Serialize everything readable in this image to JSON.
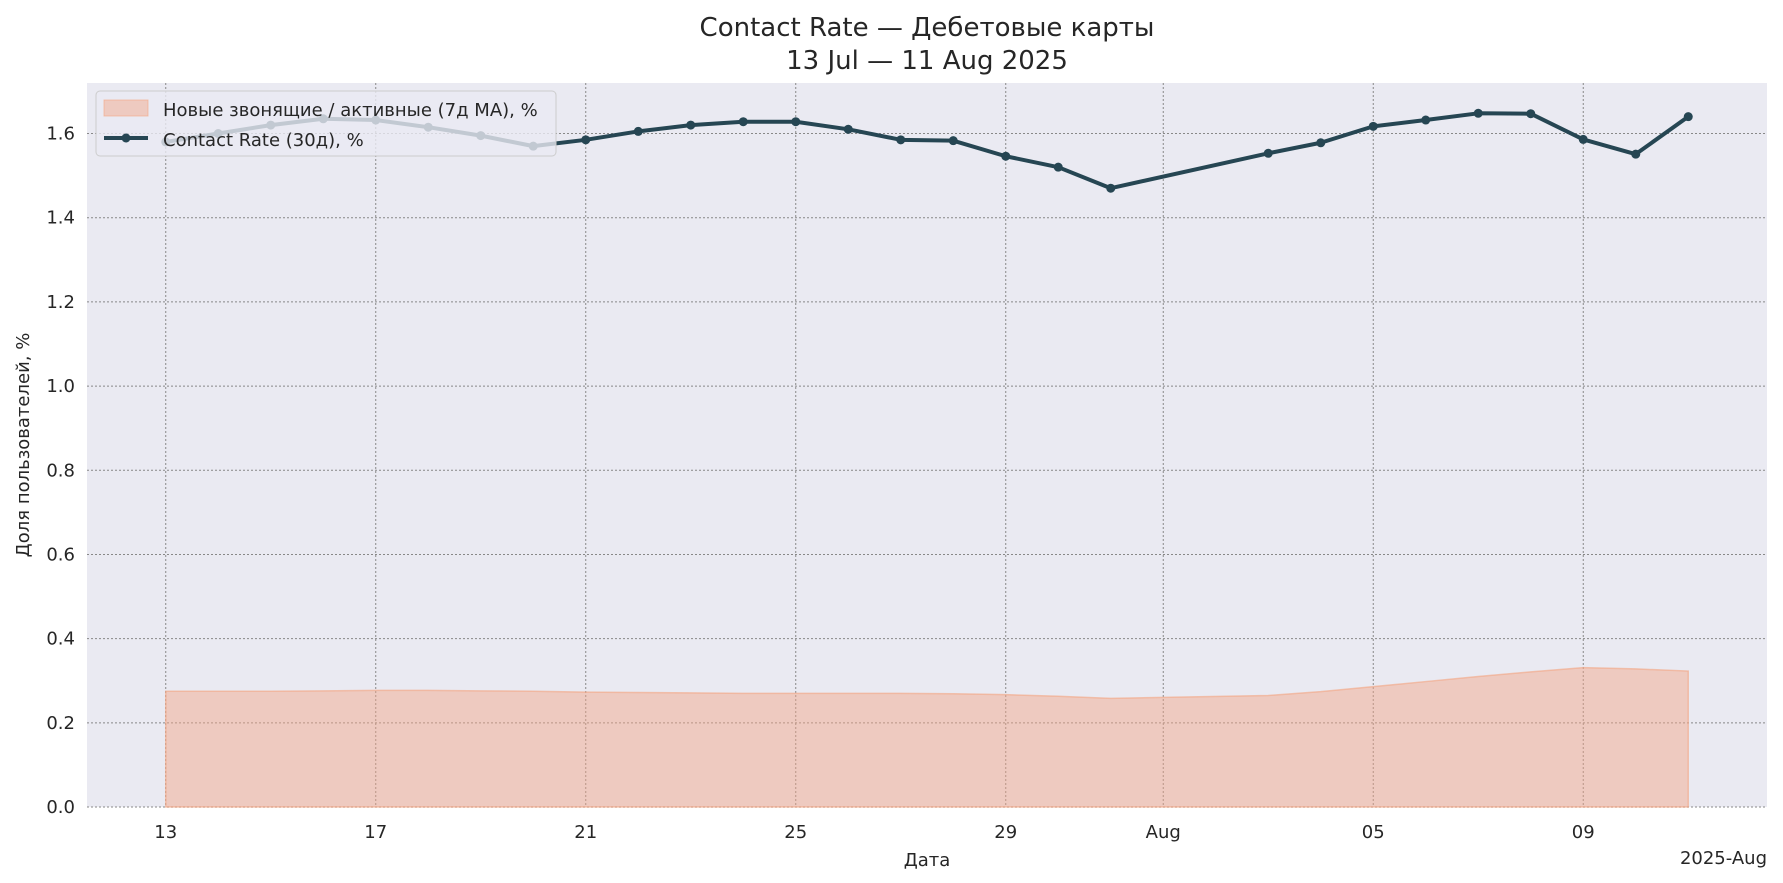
{
  "chart_data": {
    "type": "line",
    "title": "Contact Rate — Дебетовые карты",
    "subtitle": "13 Jul — 11 Aug 2025",
    "xlabel": "Дата",
    "ylabel": "Доля пользователей, %",
    "x_offset_label": "2025-Aug",
    "ylim": [
      0,
      1.72
    ],
    "yticks": [
      "0.0",
      "0.2",
      "0.4",
      "0.6",
      "0.8",
      "1.0",
      "1.2",
      "1.4",
      "1.6"
    ],
    "xticks": [
      "13",
      "17",
      "21",
      "25",
      "29",
      "Aug",
      "05",
      "09"
    ],
    "grid": true,
    "legend_position": "top-left",
    "colors": {
      "plot_background": "#eaeaf2",
      "line": "#264653",
      "area_fill": "#f4a582",
      "grid": "#888888"
    },
    "series": [
      {
        "name": "Новые звонящие / активные (7д MA), %",
        "kind": "area",
        "x": [
          "2025-07-13",
          "2025-07-14",
          "2025-07-15",
          "2025-07-16",
          "2025-07-17",
          "2025-07-18",
          "2025-07-19",
          "2025-07-20",
          "2025-07-21",
          "2025-07-22",
          "2025-07-23",
          "2025-07-24",
          "2025-07-25",
          "2025-07-26",
          "2025-07-27",
          "2025-07-28",
          "2025-07-29",
          "2025-07-30",
          "2025-07-31",
          "2025-08-03",
          "2025-08-04",
          "2025-08-05",
          "2025-08-06",
          "2025-08-07",
          "2025-08-08",
          "2025-08-09",
          "2025-08-10",
          "2025-08-11"
        ],
        "values": [
          0.275,
          0.275,
          0.275,
          0.276,
          0.277,
          0.277,
          0.276,
          0.275,
          0.273,
          0.272,
          0.271,
          0.27,
          0.27,
          0.27,
          0.27,
          0.269,
          0.267,
          0.263,
          0.258,
          0.265,
          0.274,
          0.286,
          0.298,
          0.31,
          0.321,
          0.331,
          0.328,
          0.323
        ]
      },
      {
        "name": "Contact Rate (30д), %",
        "kind": "line",
        "x": [
          "2025-07-13",
          "2025-07-14",
          "2025-07-15",
          "2025-07-16",
          "2025-07-17",
          "2025-07-18",
          "2025-07-19",
          "2025-07-20",
          "2025-07-21",
          "2025-07-22",
          "2025-07-23",
          "2025-07-24",
          "2025-07-25",
          "2025-07-26",
          "2025-07-27",
          "2025-07-28",
          "2025-07-29",
          "2025-07-30",
          "2025-07-31",
          "2025-08-03",
          "2025-08-04",
          "2025-08-05",
          "2025-08-06",
          "2025-08-07",
          "2025-08-08",
          "2025-08-09",
          "2025-08-10",
          "2025-08-11"
        ],
        "values": [
          1.58,
          1.6,
          1.62,
          1.635,
          1.632,
          1.615,
          1.595,
          1.57,
          1.585,
          1.605,
          1.62,
          1.628,
          1.628,
          1.61,
          1.585,
          1.583,
          1.546,
          1.52,
          1.47,
          1.553,
          1.578,
          1.617,
          1.632,
          1.648,
          1.647,
          1.586,
          1.551,
          1.64
        ]
      }
    ]
  }
}
